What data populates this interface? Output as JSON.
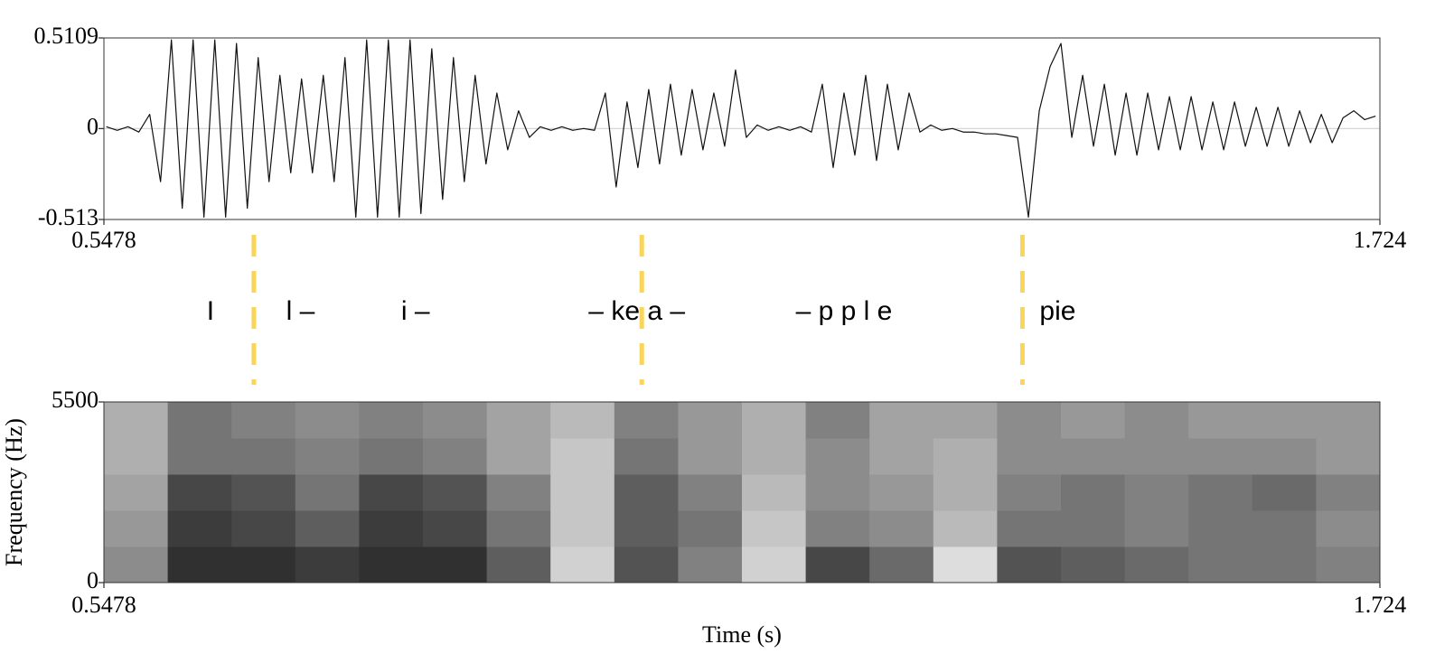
{
  "chart_data": [
    {
      "type": "line",
      "color": "#111111",
      "zero_line": true,
      "xlim": [
        0.5478,
        1.724
      ],
      "xticks": [
        0.5478,
        1.724
      ],
      "ylim": [
        -0.513,
        0.5109
      ],
      "yticks": [
        -0.513,
        0,
        0.5109
      ],
      "x": [
        0.55,
        0.56,
        0.57,
        0.58,
        0.59,
        0.6,
        0.61,
        0.62,
        0.63,
        0.64,
        0.65,
        0.66,
        0.67,
        0.68,
        0.69,
        0.7,
        0.71,
        0.72,
        0.73,
        0.74,
        0.75,
        0.76,
        0.77,
        0.78,
        0.79,
        0.8,
        0.81,
        0.82,
        0.83,
        0.84,
        0.85,
        0.86,
        0.87,
        0.88,
        0.89,
        0.9,
        0.91,
        0.92,
        0.93,
        0.94,
        0.95,
        0.96,
        0.97,
        0.98,
        0.99,
        1.0,
        1.01,
        1.02,
        1.03,
        1.04,
        1.05,
        1.06,
        1.07,
        1.08,
        1.09,
        1.1,
        1.11,
        1.12,
        1.13,
        1.14,
        1.15,
        1.16,
        1.17,
        1.18,
        1.19,
        1.2,
        1.21,
        1.22,
        1.23,
        1.24,
        1.25,
        1.26,
        1.27,
        1.28,
        1.29,
        1.3,
        1.31,
        1.32,
        1.33,
        1.34,
        1.35,
        1.36,
        1.37,
        1.38,
        1.39,
        1.4,
        1.41,
        1.42,
        1.43,
        1.44,
        1.45,
        1.46,
        1.47,
        1.48,
        1.49,
        1.5,
        1.51,
        1.52,
        1.53,
        1.54,
        1.55,
        1.56,
        1.57,
        1.58,
        1.59,
        1.6,
        1.61,
        1.62,
        1.63,
        1.64,
        1.65,
        1.66,
        1.67,
        1.68,
        1.69,
        1.7,
        1.71,
        1.72
      ],
      "values": [
        0.01,
        -0.01,
        0.01,
        -0.02,
        0.08,
        -0.3,
        0.5,
        -0.45,
        0.5,
        -0.5,
        0.5,
        -0.5,
        0.48,
        -0.45,
        0.4,
        -0.3,
        0.3,
        -0.25,
        0.28,
        -0.25,
        0.3,
        -0.3,
        0.4,
        -0.5,
        0.5,
        -0.5,
        0.5,
        -0.5,
        0.5,
        -0.48,
        0.45,
        -0.4,
        0.4,
        -0.3,
        0.3,
        -0.2,
        0.2,
        -0.12,
        0.1,
        -0.05,
        0.01,
        -0.01,
        0.01,
        -0.01,
        0.0,
        -0.01,
        0.2,
        -0.33,
        0.15,
        -0.22,
        0.22,
        -0.2,
        0.25,
        -0.15,
        0.22,
        -0.12,
        0.2,
        -0.1,
        0.33,
        -0.05,
        0.02,
        -0.01,
        0.01,
        -0.01,
        0.01,
        -0.02,
        0.25,
        -0.22,
        0.2,
        -0.15,
        0.3,
        -0.18,
        0.25,
        -0.12,
        0.2,
        -0.02,
        0.02,
        -0.01,
        0.0,
        -0.02,
        -0.02,
        -0.03,
        -0.03,
        -0.04,
        -0.05,
        -0.5,
        0.1,
        0.35,
        0.48,
        -0.05,
        0.3,
        -0.1,
        0.25,
        -0.15,
        0.2,
        -0.15,
        0.2,
        -0.12,
        0.18,
        -0.12,
        0.18,
        -0.12,
        0.15,
        -0.12,
        0.15,
        -0.1,
        0.12,
        -0.1,
        0.12,
        -0.1,
        0.1,
        -0.08,
        0.08,
        -0.08,
        0.06,
        0.1,
        0.05,
        0.07
      ],
      "boundaries": [
        0.686,
        1.0436,
        1.3945
      ],
      "boundary_color": "#f9d55b",
      "annotations": [
        {
          "x": 0.646,
          "text": "I"
        },
        {
          "x": 0.729,
          "text": "l –"
        },
        {
          "x": 0.835,
          "text": "i –"
        },
        {
          "x": 1.039,
          "text": "– ke a –"
        },
        {
          "x": 1.23,
          "text": "– p p l e"
        },
        {
          "x": 1.427,
          "text": "pie"
        }
      ]
    },
    {
      "type": "heatmap",
      "xlabel": "Time (s)",
      "ylabel": "Frequency (Hz)",
      "xlim": [
        0.5478,
        1.724
      ],
      "xticks": [
        0.5478,
        1.724
      ],
      "ylim": [
        0,
        5500
      ],
      "yticks": [
        0,
        5500
      ],
      "values": [
        [
          0.5,
          0.9,
          0.9,
          0.85,
          0.9,
          0.9,
          0.7,
          0.2,
          0.75,
          0.55,
          0.2,
          0.8,
          0.65,
          0.15,
          0.75,
          0.7,
          0.65,
          0.6,
          0.6,
          0.55
        ],
        [
          0.45,
          0.85,
          0.8,
          0.7,
          0.85,
          0.8,
          0.6,
          0.25,
          0.7,
          0.6,
          0.25,
          0.55,
          0.5,
          0.3,
          0.6,
          0.6,
          0.55,
          0.6,
          0.6,
          0.5
        ],
        [
          0.4,
          0.8,
          0.75,
          0.6,
          0.8,
          0.75,
          0.55,
          0.25,
          0.7,
          0.55,
          0.3,
          0.5,
          0.45,
          0.35,
          0.55,
          0.6,
          0.55,
          0.6,
          0.65,
          0.55
        ],
        [
          0.35,
          0.6,
          0.6,
          0.55,
          0.6,
          0.55,
          0.4,
          0.25,
          0.6,
          0.45,
          0.35,
          0.5,
          0.4,
          0.35,
          0.5,
          0.5,
          0.5,
          0.5,
          0.5,
          0.45
        ],
        [
          0.35,
          0.6,
          0.55,
          0.5,
          0.55,
          0.5,
          0.4,
          0.3,
          0.55,
          0.45,
          0.35,
          0.55,
          0.4,
          0.4,
          0.5,
          0.45,
          0.5,
          0.45,
          0.45,
          0.45
        ]
      ]
    }
  ]
}
